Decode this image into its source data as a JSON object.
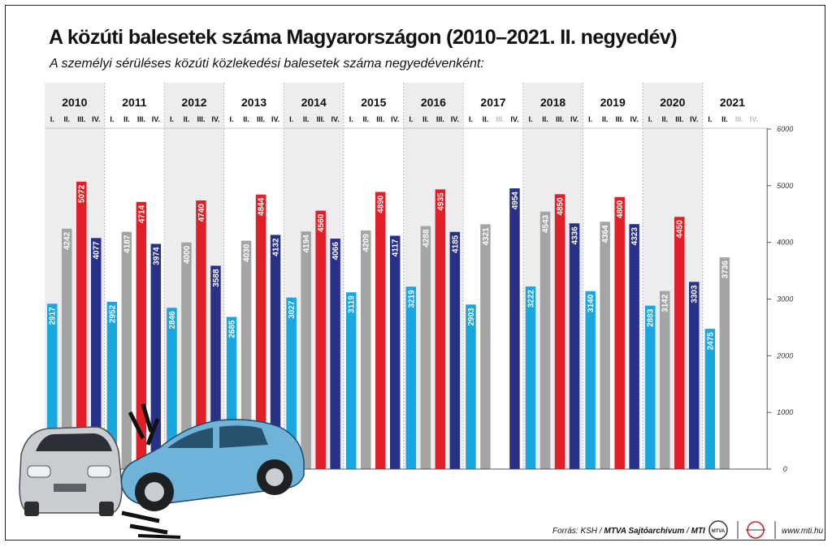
{
  "chart_data": {
    "type": "bar",
    "title": "A közúti balesetek száma Magyarországon (2010–2021. II. negyedév)",
    "subtitle": "A személyi sérüléses közúti közlekedési balesetek száma negyedévenként:",
    "years": [
      "2010",
      "2011",
      "2012",
      "2013",
      "2014",
      "2015",
      "2016",
      "2017",
      "2018",
      "2019",
      "2020",
      "2021"
    ],
    "quarter_labels": [
      "I.",
      "II.",
      "III.",
      "IV."
    ],
    "series": [
      {
        "quarter": "I.",
        "color": "#1aa6de",
        "values": [
          2917,
          2952,
          2846,
          2685,
          3027,
          3119,
          3219,
          2903,
          3222,
          3140,
          2883,
          2475
        ]
      },
      {
        "quarter": "II.",
        "color": "#a4a4a4",
        "values": [
          4242,
          4187,
          4000,
          4030,
          4194,
          4209,
          4288,
          4321,
          4543,
          4364,
          3142,
          3736
        ]
      },
      {
        "quarter": "III.",
        "color": "#e21f26",
        "values": [
          5072,
          4714,
          4740,
          4844,
          4560,
          4890,
          4935,
          null,
          4850,
          4800,
          4450,
          null
        ]
      },
      {
        "quarter": "IV.",
        "color": "#283088",
        "values": [
          4077,
          3974,
          3588,
          4132,
          4066,
          4117,
          4185,
          4954,
          4336,
          4323,
          3303,
          null
        ]
      }
    ],
    "yticks": [
      0,
      1000,
      2000,
      3000,
      4000,
      5000,
      6000
    ],
    "ylim": [
      0,
      6000
    ],
    "grid": false
  },
  "footer": {
    "source_prefix": "Forrás: KSH /",
    "source_archive": "MTVA Sajtóarchívum",
    "source_sep": "/",
    "source_mti": "MTI",
    "url": "www.mti.hu",
    "logo_text": "MTVA"
  },
  "illustration": {
    "left_car": "silver-car",
    "right_car": "blue-car"
  }
}
